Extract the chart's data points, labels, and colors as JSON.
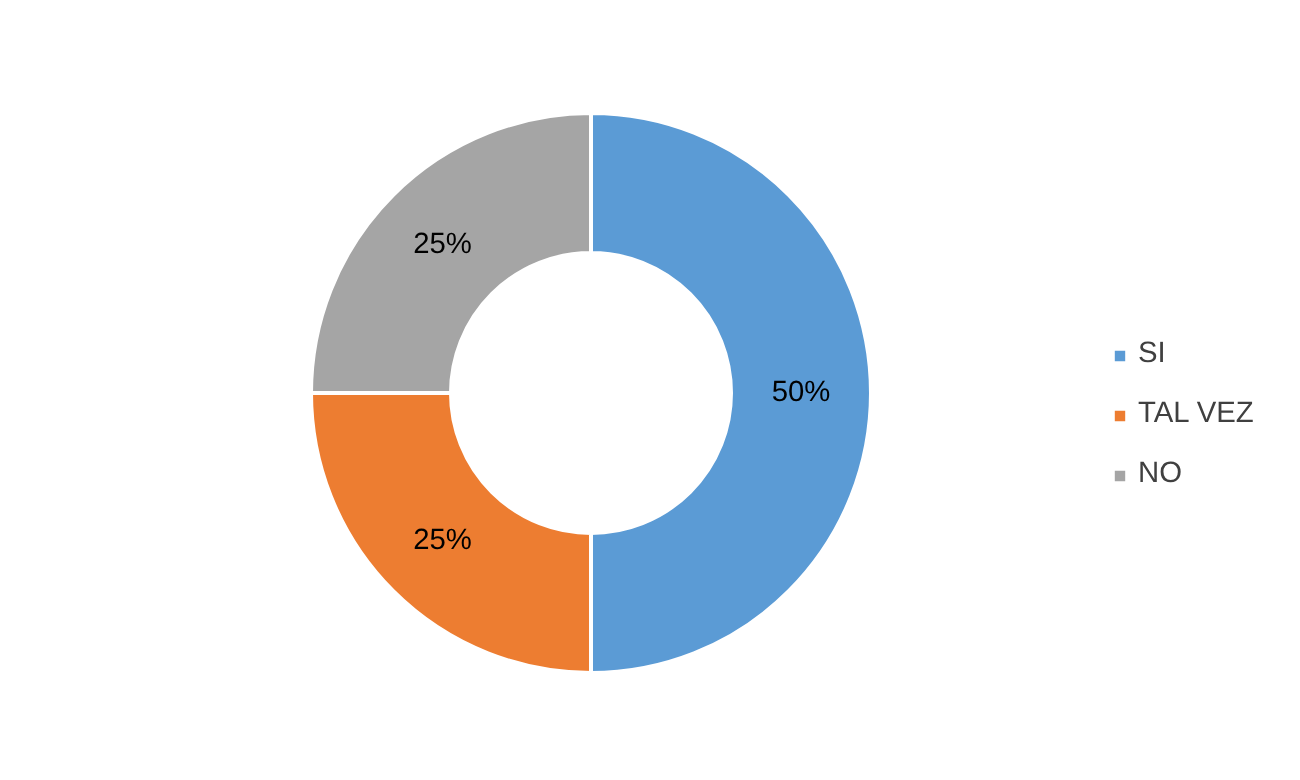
{
  "chart_data": {
    "type": "donut",
    "categories": [
      "SI",
      "TAL VEZ",
      "NO"
    ],
    "values": [
      50,
      25,
      25
    ],
    "colors": [
      "#5b9bd5",
      "#ed7d31",
      "#a5a5a5"
    ],
    "value_labels": [
      "50%",
      "25%",
      "25%"
    ],
    "legend": "right"
  }
}
